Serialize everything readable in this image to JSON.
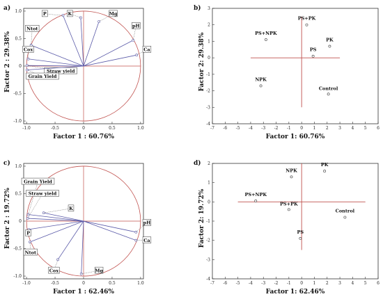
{
  "chart_data": [
    {
      "panel": "a)",
      "type": "scatter",
      "xlabel": "Factor 1 : 60.76%",
      "ylabel": "Factor 2 : 29.38%",
      "xlim": [
        -1.05,
        1.05
      ],
      "ylim": [
        -1.05,
        1.05
      ],
      "xticks": [
        "-1.0",
        "-0.5",
        "0",
        "0.5",
        "1.0"
      ],
      "yticks": [
        "-1.0",
        "-0.5",
        "0",
        "0.5",
        "1.0"
      ],
      "xtick_values": [
        -1,
        -0.5,
        0,
        0.5,
        1
      ],
      "ytick_values": [
        -1,
        -0.5,
        0,
        0.5,
        1
      ],
      "circle": true,
      "points": [
        {
          "label": "P",
          "x": -0.36,
          "y": 0.92,
          "lx": -0.68,
          "ly": 0.95
        },
        {
          "label": "K",
          "x": -0.05,
          "y": 0.88,
          "lx": -0.24,
          "ly": 0.95
        },
        {
          "label": "Mg",
          "x": 0.27,
          "y": 0.81,
          "lx": 0.52,
          "ly": 0.95
        },
        {
          "label": "Ntot",
          "x": -0.92,
          "y": 0.38,
          "lx": -0.9,
          "ly": 0.68
        },
        {
          "label": "pH",
          "x": 0.87,
          "y": 0.47,
          "lx": 0.92,
          "ly": 0.73
        },
        {
          "label": "Ca",
          "x": 0.93,
          "y": 0.2,
          "lx": 1.11,
          "ly": 0.3
        },
        {
          "label": "Cox",
          "x": -0.97,
          "y": 0.13,
          "lx": -0.97,
          "ly": 0.3
        },
        {
          "label": "Straw yield",
          "x": -0.99,
          "y": 0.01,
          "lx": -0.4,
          "ly": -0.09
        },
        {
          "label": "Grain Yield",
          "x": -0.99,
          "y": -0.07,
          "lx": -0.72,
          "ly": -0.19
        }
      ]
    },
    {
      "panel": "b)",
      "type": "scatter",
      "xlabel": "Factor 1: 60.76%",
      "ylabel": "Factor 2: 29.38%",
      "xlim": [
        -7,
        6
      ],
      "ylim": [
        -4,
        3
      ],
      "xticks": [
        "-7",
        "-6",
        "-5",
        "-4",
        "-3",
        "-2",
        "-1",
        "0",
        "1",
        "2",
        "3",
        "4",
        "5",
        "6"
      ],
      "yticks": [
        "-4",
        "-3",
        "-2",
        "-1",
        "0",
        "1",
        "2",
        "3"
      ],
      "xtick_values": [
        -7,
        -6,
        -5,
        -4,
        -3,
        -2,
        -1,
        0,
        1,
        2,
        3,
        4,
        5,
        6
      ],
      "ytick_values": [
        -4,
        -3,
        -2,
        -1,
        0,
        1,
        2,
        3
      ],
      "cross": {
        "x": [
          -4,
          3
        ],
        "y": [
          -3,
          2.5
        ]
      },
      "points": [
        {
          "label": "PS+PK",
          "x": 0.4,
          "y": 2.0,
          "lx": 0.4,
          "ly": 2.3
        },
        {
          "label": "PS+NPK",
          "x": -2.8,
          "y": 1.1,
          "lx": -2.8,
          "ly": 1.4
        },
        {
          "label": "PK",
          "x": 2.2,
          "y": 0.7,
          "lx": 2.2,
          "ly": 1.0
        },
        {
          "label": "PS",
          "x": 0.9,
          "y": 0.1,
          "lx": 0.9,
          "ly": 0.4
        },
        {
          "label": "NPK",
          "x": -3.2,
          "y": -1.7,
          "lx": -3.2,
          "ly": -1.4
        },
        {
          "label": "Control",
          "x": 2.1,
          "y": -2.2,
          "lx": 2.1,
          "ly": -1.95
        }
      ]
    },
    {
      "panel": "c)",
      "type": "scatter",
      "xlabel": "Factor 1 : 62.46%",
      "ylabel": "Factor 2 : 19.72%",
      "xlim": [
        -1.05,
        1.05
      ],
      "ylim": [
        -1.05,
        1.05
      ],
      "xticks": [
        "-1.0",
        "-0.5",
        "0",
        "0.5",
        "1.0"
      ],
      "yticks": [
        "-1.0",
        "-0.5",
        "0",
        "0.5",
        "1.0"
      ],
      "xtick_values": [
        -1,
        -0.5,
        0,
        0.5,
        1
      ],
      "ytick_values": [
        -1,
        -0.5,
        0,
        0.5,
        1
      ],
      "circle": true,
      "points": [
        {
          "label": "Grain Yield",
          "x": -0.97,
          "y": 0.12,
          "lx": -0.8,
          "ly": 0.72
        },
        {
          "label": "Straw yield",
          "x": -0.98,
          "y": 0.05,
          "lx": -0.72,
          "ly": 0.5
        },
        {
          "label": "K",
          "x": -0.7,
          "y": 0.15,
          "lx": -0.22,
          "ly": 0.23
        },
        {
          "label": "P",
          "x": -0.96,
          "y": -0.15,
          "lx": -0.97,
          "ly": -0.22
        },
        {
          "label": "Ntot",
          "x": -0.94,
          "y": -0.38,
          "lx": -0.93,
          "ly": -0.57
        },
        {
          "label": "Cox",
          "x": -0.45,
          "y": -0.7,
          "lx": -0.52,
          "ly": -0.9
        },
        {
          "label": "Mg",
          "x": -0.04,
          "y": -0.96,
          "lx": 0.27,
          "ly": -0.9
        },
        {
          "label": "pH",
          "x": 0.92,
          "y": -0.2,
          "lx": 1.11,
          "ly": -0.03
        },
        {
          "label": "Ca",
          "x": 0.92,
          "y": -0.35,
          "lx": 1.11,
          "ly": -0.35
        }
      ]
    },
    {
      "panel": "d)",
      "type": "scatter",
      "xlabel": "Factor 1: 62.46%",
      "ylabel": "Factor 2: 19.72%",
      "xlim": [
        -7,
        6
      ],
      "ylim": [
        -4,
        2
      ],
      "xticks": [
        "-7",
        "-6",
        "-5",
        "-4",
        "-3",
        "-2",
        "-1",
        "0",
        "1",
        "2",
        "3",
        "4",
        "5",
        "6"
      ],
      "yticks": [
        "-4",
        "-3",
        "-2",
        "-1",
        "0",
        "1",
        "2"
      ],
      "xtick_values": [
        -7,
        -6,
        -5,
        -4,
        -3,
        -2,
        -1,
        0,
        1,
        2,
        3,
        4,
        5,
        6
      ],
      "ytick_values": [
        -4,
        -3,
        -2,
        -1,
        0,
        1,
        2
      ],
      "cross": {
        "x": [
          -5,
          5
        ],
        "y": [
          -2.5,
          2
        ]
      },
      "points": [
        {
          "label": "PK",
          "x": 1.8,
          "y": 1.6,
          "lx": 1.8,
          "ly": 1.85
        },
        {
          "label": "NPK",
          "x": -0.8,
          "y": 1.3,
          "lx": -0.8,
          "ly": 1.55
        },
        {
          "label": "PS+NPK",
          "x": -3.6,
          "y": 0.05,
          "lx": -3.6,
          "ly": 0.3
        },
        {
          "label": "PS+PK",
          "x": -1.0,
          "y": -0.4,
          "lx": -1.0,
          "ly": -0.18
        },
        {
          "label": "Control",
          "x": 3.4,
          "y": -0.8,
          "lx": 3.4,
          "ly": -0.55
        },
        {
          "label": "PS",
          "x": -0.1,
          "y": -1.9,
          "lx": -0.1,
          "ly": -1.65
        }
      ]
    }
  ]
}
